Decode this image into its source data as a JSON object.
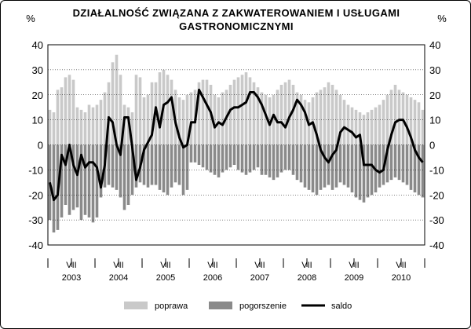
{
  "title_line1": "DZIAŁALNOŚĆ ZWIĄZANA Z ZAKWATEROWANIEM I USŁUGAMI",
  "title_line2": "GASTRONOMICZNYMI",
  "chart_data": {
    "type": "bar",
    "unit_left": "%",
    "unit_right": "%",
    "ylim": [
      -40,
      40
    ],
    "yticks": [
      -40,
      -30,
      -20,
      -10,
      0,
      10,
      20,
      30,
      40
    ],
    "x_start": "2003-01",
    "x_end": "2010-12",
    "month_ticks": [
      "I",
      "VII",
      "I",
      "VII",
      "I",
      "VII",
      "I",
      "VII",
      "I",
      "VII",
      "I",
      "VII",
      "I",
      "VII",
      "I",
      "VII",
      "I"
    ],
    "years": [
      "2003",
      "2004",
      "2005",
      "2006",
      "2007",
      "2008",
      "2009",
      "2010"
    ],
    "colors": {
      "poprawa": "#c9c9c9",
      "pogorszenie": "#8a8a8a",
      "saldo": "#000000"
    },
    "legend_position": "bottom",
    "series": [
      {
        "name": "poprawa",
        "kind": "bar",
        "values": [
          14,
          13,
          22,
          23,
          27,
          28,
          26,
          15,
          14,
          13,
          16,
          15,
          16,
          18,
          21,
          25,
          33,
          36,
          28,
          16,
          15,
          13,
          28,
          27,
          19,
          20,
          25,
          25,
          29,
          30,
          28,
          26,
          22,
          19,
          18,
          20,
          21,
          22,
          25,
          26,
          26,
          24,
          20,
          19,
          21,
          22,
          24,
          26,
          27,
          28,
          29,
          27,
          25,
          23,
          21,
          20,
          19,
          20,
          22,
          24,
          25,
          26,
          24,
          21,
          20,
          18,
          17,
          19,
          21,
          22,
          23,
          25,
          24,
          22,
          20,
          18,
          16,
          15,
          14,
          13,
          12,
          13,
          14,
          15,
          16,
          18,
          20,
          22,
          24,
          22,
          21,
          20,
          19,
          18,
          17,
          14
        ]
      },
      {
        "name": "pogorszenie",
        "kind": "bar",
        "values": [
          -30,
          -35,
          -34,
          -29,
          -24,
          -28,
          -26,
          -25,
          -30,
          -28,
          -29,
          -31,
          -29,
          -21,
          -17,
          -16,
          -17,
          -18,
          -21,
          -26,
          -24,
          -20,
          -17,
          -15,
          -16,
          -17,
          -16,
          -16,
          -18,
          -19,
          -20,
          -17,
          -15,
          -16,
          -20,
          -18,
          -7,
          -7,
          -8,
          -9,
          -10,
          -11,
          -12,
          -13,
          -11,
          -10,
          -9,
          -8,
          -10,
          -11,
          -12,
          -11,
          -10,
          -9,
          -12,
          -12,
          -13,
          -14,
          -13,
          -11,
          -10,
          -10,
          -12,
          -14,
          -15,
          -17,
          -18,
          -19,
          -20,
          -18,
          -17,
          -16,
          -18,
          -17,
          -15,
          -16,
          -17,
          -19,
          -21,
          -22,
          -23,
          -21,
          -20,
          -19,
          -17,
          -16,
          -15,
          -14,
          -13,
          -14,
          -15,
          -16,
          -18,
          -19,
          -20,
          -21
        ]
      },
      {
        "name": "saldo",
        "kind": "line",
        "values": [
          -15,
          -22,
          -20,
          -4,
          -8,
          0,
          -8,
          -12,
          -4,
          -9,
          -7,
          -7,
          -9,
          -17,
          -8,
          11,
          9,
          0,
          -4,
          11,
          11,
          -1,
          -14,
          -9,
          -2,
          1,
          4,
          15,
          7,
          16,
          17,
          19,
          9,
          3,
          -1,
          0,
          9,
          9,
          22,
          19,
          16,
          13,
          7,
          9,
          8,
          11,
          14,
          15,
          15,
          16,
          17,
          21,
          21,
          19,
          16,
          12,
          8,
          12,
          9,
          9,
          7,
          11,
          14,
          18,
          16,
          13,
          8,
          9,
          4,
          -2,
          -5,
          -7,
          -4,
          -2,
          5,
          7,
          6,
          5,
          3,
          4,
          -8,
          -8,
          -8,
          -10,
          -11,
          -10,
          -2,
          4,
          9,
          10,
          10,
          7,
          3,
          -2,
          -5,
          -7
        ]
      }
    ]
  }
}
